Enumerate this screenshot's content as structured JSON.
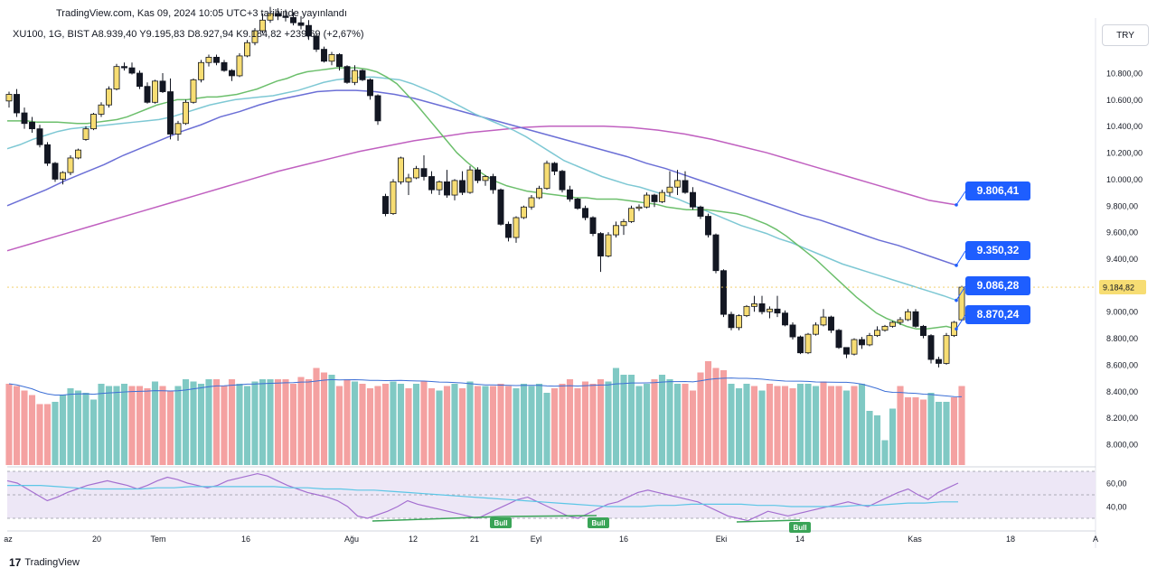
{
  "header": {
    "attribution": "TradingView.com, Kas 09, 2024 10:05 UTC+3 tarihinde yayınlandı",
    "symbol_line": "XU100, 1G, BIST  A8.939,40  Y9.195,83  D8.927,94  K9.184,82  +239,69 (+2,67%)",
    "currency": "TRY"
  },
  "footer": {
    "brand": "TradingView",
    "logo_glyph": "17"
  },
  "colors": {
    "up": "#f7dd73",
    "down": "#131722",
    "vol_up": "#80c9c4",
    "vol_down": "#f4a1a1",
    "ma_green": "#6cbf6c",
    "ma_teal": "#7ec8d4",
    "ma_blue": "#6b6fd6",
    "ma_purple": "#c060c0",
    "rsi_line": "#a46fd0",
    "rsi_ma": "#5bc6e6",
    "rsi_band": "#ede7f6",
    "label_bg": "#1e5eff",
    "div_line": "#3aa457"
  },
  "chart_data": {
    "type": "candlestick",
    "y_ticks": [
      "10.800,00",
      "10.600,00",
      "10.400,00",
      "10.200,00",
      "10.000,00",
      "9.800,00",
      "9.600,00",
      "9.400,00",
      "9.200,00",
      "9.000,00",
      "8.800,00",
      "8.600,00",
      "8.400,00",
      "8.200,00",
      "8.000,00"
    ],
    "rsi_ticks": [
      "60,00",
      "40,00"
    ],
    "x_labels": [
      "az",
      "20",
      "Tem",
      "16",
      "Ağu",
      "12",
      "21",
      "Eyl",
      "16",
      "Eki",
      "14",
      "Kas",
      "18",
      "A"
    ],
    "current_price_label": "9.184,82",
    "ma_labels": [
      "9.806,41",
      "9.350,32",
      "9.086,28",
      "8.870,24"
    ],
    "divergence_labels": [
      "Bull",
      "Bull",
      "Bull"
    ],
    "candles": [
      [
        10590,
        10660,
        10540,
        10640
      ],
      [
        10640,
        10680,
        10470,
        10500
      ],
      [
        10500,
        10540,
        10380,
        10420
      ],
      [
        10430,
        10470,
        10350,
        10380
      ],
      [
        10380,
        10410,
        10240,
        10260
      ],
      [
        10260,
        10280,
        10100,
        10120
      ],
      [
        10120,
        10130,
        9980,
        10000
      ],
      [
        10000,
        10060,
        9960,
        10050
      ],
      [
        10050,
        10180,
        10030,
        10160
      ],
      [
        10160,
        10230,
        10150,
        10220
      ],
      [
        10300,
        10400,
        10290,
        10380
      ],
      [
        10380,
        10500,
        10370,
        10490
      ],
      [
        10490,
        10580,
        10470,
        10560
      ],
      [
        10560,
        10700,
        10540,
        10680
      ],
      [
        10680,
        10870,
        10670,
        10850
      ],
      [
        10850,
        10880,
        10820,
        10840
      ],
      [
        10840,
        10880,
        10790,
        10800
      ],
      [
        10800,
        10820,
        10680,
        10700
      ],
      [
        10700,
        10730,
        10570,
        10580
      ],
      [
        10580,
        10750,
        10570,
        10740
      ],
      [
        10740,
        10800,
        10650,
        10660
      ],
      [
        10660,
        10760,
        10300,
        10340
      ],
      [
        10340,
        10440,
        10290,
        10420
      ],
      [
        10420,
        10600,
        10410,
        10580
      ],
      [
        10580,
        10760,
        10570,
        10750
      ],
      [
        10750,
        10900,
        10730,
        10880
      ],
      [
        10880,
        10940,
        10850,
        10920
      ],
      [
        10920,
        10940,
        10860,
        10880
      ],
      [
        10880,
        10900,
        10810,
        10820
      ],
      [
        10820,
        10830,
        10740,
        10780
      ],
      [
        10780,
        10950,
        10770,
        10930
      ],
      [
        10930,
        11050,
        10920,
        11030
      ],
      [
        11030,
        11140,
        11010,
        11120
      ],
      [
        11120,
        11250,
        11100,
        11200
      ],
      [
        11200,
        11300,
        11180,
        11250
      ],
      [
        11250,
        11290,
        11200,
        11230
      ],
      [
        11230,
        11280,
        11190,
        11220
      ],
      [
        11220,
        11260,
        11160,
        11180
      ],
      [
        11180,
        11230,
        11130,
        11160
      ],
      [
        11160,
        11200,
        11050,
        11080
      ],
      [
        11080,
        11100,
        10960,
        10980
      ],
      [
        10980,
        11000,
        10880,
        10890
      ],
      [
        10890,
        10960,
        10860,
        10940
      ],
      [
        10940,
        10950,
        10820,
        10850
      ],
      [
        10850,
        10860,
        10720,
        10730
      ],
      [
        10730,
        10860,
        10710,
        10820
      ],
      [
        10820,
        10830,
        10740,
        10750
      ],
      [
        10750,
        10760,
        10600,
        10630
      ],
      [
        10630,
        10640,
        10410,
        10440
      ],
      [
        9870,
        9890,
        9720,
        9740
      ],
      [
        9740,
        10000,
        9730,
        9980
      ],
      [
        9980,
        10170,
        9960,
        10160
      ],
      [
        9980,
        10040,
        9880,
        10010
      ],
      [
        10010,
        10100,
        10000,
        10080
      ],
      [
        10080,
        10180,
        9990,
        10020
      ],
      [
        10020,
        10060,
        9890,
        9920
      ],
      [
        9920,
        9990,
        9880,
        9980
      ],
      [
        9980,
        10070,
        9860,
        9880
      ],
      [
        9880,
        10000,
        9840,
        9990
      ],
      [
        9990,
        10060,
        9880,
        9900
      ],
      [
        9900,
        10100,
        9890,
        10070
      ],
      [
        10070,
        10090,
        9970,
        9990
      ],
      [
        9990,
        10030,
        9950,
        10020
      ],
      [
        10020,
        10040,
        9890,
        9920
      ],
      [
        9920,
        9930,
        9650,
        9660
      ],
      [
        9660,
        9680,
        9530,
        9560
      ],
      [
        9560,
        9720,
        9520,
        9710
      ],
      [
        9710,
        9800,
        9700,
        9790
      ],
      [
        9790,
        9880,
        9770,
        9860
      ],
      [
        9860,
        9950,
        9850,
        9930
      ],
      [
        9930,
        10140,
        9920,
        10120
      ],
      [
        10120,
        10130,
        10030,
        10060
      ],
      [
        10060,
        10070,
        9900,
        9920
      ],
      [
        9920,
        9950,
        9830,
        9850
      ],
      [
        9850,
        9860,
        9770,
        9780
      ],
      [
        9780,
        9800,
        9690,
        9710
      ],
      [
        9710,
        9720,
        9570,
        9590
      ],
      [
        9590,
        9600,
        9300,
        9420
      ],
      [
        9420,
        9600,
        9410,
        9580
      ],
      [
        9580,
        9680,
        9560,
        9650
      ],
      [
        9650,
        9700,
        9580,
        9680
      ],
      [
        9680,
        9800,
        9670,
        9780
      ],
      [
        9780,
        9810,
        9760,
        9790
      ],
      [
        9790,
        9900,
        9780,
        9880
      ],
      [
        9880,
        9890,
        9790,
        9830
      ],
      [
        9830,
        9920,
        9820,
        9900
      ],
      [
        9900,
        10060,
        9870,
        9940
      ],
      [
        9940,
        10070,
        9880,
        9990
      ],
      [
        9990,
        10060,
        9890,
        9900
      ],
      [
        9900,
        9940,
        9770,
        9790
      ],
      [
        9790,
        9800,
        9700,
        9720
      ],
      [
        9720,
        9740,
        9560,
        9580
      ],
      [
        9580,
        9590,
        9290,
        9310
      ],
      [
        9310,
        9320,
        8960,
        8980
      ],
      [
        8980,
        9000,
        8860,
        8880
      ],
      [
        8880,
        8980,
        8860,
        8970
      ],
      [
        8970,
        9050,
        8960,
        9040
      ],
      [
        9040,
        9120,
        9000,
        9060
      ],
      [
        9060,
        9120,
        8980,
        9000
      ],
      [
        9000,
        9040,
        8950,
        9020
      ],
      [
        9020,
        9120,
        8960,
        8990
      ],
      [
        8990,
        9010,
        8890,
        8900
      ],
      [
        8900,
        8920,
        8790,
        8810
      ],
      [
        8810,
        8820,
        8680,
        8690
      ],
      [
        8690,
        8840,
        8680,
        8830
      ],
      [
        8830,
        8920,
        8820,
        8900
      ],
      [
        8900,
        9020,
        8890,
        8960
      ],
      [
        8960,
        8970,
        8840,
        8860
      ],
      [
        8860,
        8870,
        8720,
        8730
      ],
      [
        8730,
        8730,
        8650,
        8680
      ],
      [
        8680,
        8800,
        8670,
        8790
      ],
      [
        8790,
        8810,
        8720,
        8750
      ],
      [
        8750,
        8840,
        8740,
        8820
      ],
      [
        8820,
        8890,
        8810,
        8860
      ],
      [
        8860,
        8900,
        8850,
        8890
      ],
      [
        8890,
        8930,
        8880,
        8920
      ],
      [
        8920,
        8960,
        8900,
        8940
      ],
      [
        8940,
        9020,
        8930,
        9000
      ],
      [
        9000,
        9020,
        8880,
        8890
      ],
      [
        8890,
        8900,
        8800,
        8820
      ],
      [
        8820,
        8830,
        8610,
        8640
      ],
      [
        8640,
        8660,
        8580,
        8610
      ],
      [
        8610,
        8840,
        8600,
        8820
      ],
      [
        8820,
        8930,
        8810,
        8920
      ],
      [
        8939,
        9196,
        8928,
        9185
      ]
    ],
    "volumes": [
      72,
      70,
      66,
      62,
      54,
      54,
      56,
      62,
      68,
      66,
      64,
      58,
      72,
      70,
      70,
      72,
      70,
      70,
      68,
      74,
      70,
      66,
      70,
      76,
      74,
      72,
      76,
      76,
      70,
      76,
      72,
      70,
      74,
      76,
      76,
      76,
      76,
      72,
      78,
      76,
      86,
      82,
      80,
      70,
      76,
      74,
      72,
      68,
      70,
      72,
      74,
      72,
      68,
      72,
      74,
      68,
      66,
      70,
      72,
      68,
      74,
      70,
      70,
      70,
      72,
      70,
      68,
      72,
      70,
      72,
      64,
      68,
      72,
      76,
      68,
      74,
      72,
      76,
      74,
      86,
      80,
      80,
      70,
      72,
      76,
      80,
      76,
      72,
      72,
      66,
      82,
      92,
      86,
      84,
      72,
      68,
      72,
      70,
      66,
      72,
      70,
      70,
      68,
      72,
      72,
      70,
      74,
      70,
      70,
      66,
      70,
      72,
      48,
      44,
      22,
      50,
      70,
      60,
      60,
      58,
      64,
      56,
      56,
      60,
      70
    ],
    "vol_up_flags": [
      0,
      0,
      0,
      0,
      0,
      0,
      1,
      1,
      1,
      1,
      1,
      1,
      1,
      1,
      1,
      1,
      0,
      0,
      0,
      1,
      0,
      0,
      1,
      1,
      1,
      1,
      1,
      0,
      0,
      0,
      1,
      1,
      1,
      1,
      1,
      0,
      0,
      0,
      0,
      0,
      0,
      0,
      1,
      0,
      0,
      1,
      0,
      0,
      0,
      0,
      1,
      1,
      0,
      1,
      0,
      0,
      1,
      0,
      1,
      0,
      1,
      0,
      1,
      0,
      0,
      0,
      1,
      1,
      1,
      1,
      1,
      0,
      0,
      0,
      0,
      0,
      0,
      0,
      1,
      1,
      1,
      1,
      1,
      1,
      0,
      1,
      1,
      1,
      0,
      0,
      0,
      0,
      0,
      0,
      1,
      1,
      1,
      0,
      1,
      0,
      0,
      0,
      0,
      1,
      1,
      1,
      0,
      0,
      0,
      1,
      0,
      1,
      1,
      1,
      1,
      1,
      0,
      0,
      0,
      0,
      1,
      1,
      1
    ],
    "ma_series": {
      "ma_green": [
        10440,
        10440,
        10440,
        10430,
        10430,
        10430,
        10425,
        10420,
        10420,
        10430,
        10440,
        10450,
        10470,
        10500,
        10530,
        10560,
        10580,
        10600,
        10600,
        10610,
        10620,
        10620,
        10630,
        10640,
        10660,
        10680,
        10710,
        10740,
        10760,
        10790,
        10810,
        10820,
        10830,
        10840,
        10840,
        10840,
        10830,
        10810,
        10770,
        10720,
        10640,
        10560,
        10470,
        10380,
        10290,
        10200,
        10130,
        10070,
        10020,
        9980,
        9950,
        9930,
        9910,
        9900,
        9890,
        9880,
        9870,
        9860,
        9860,
        9850,
        9850,
        9850,
        9840,
        9830,
        9820,
        9810,
        9790,
        9780,
        9770,
        9770,
        9770,
        9760,
        9750,
        9740,
        9720,
        9690,
        9660,
        9620,
        9570,
        9510,
        9450,
        9390,
        9320,
        9250,
        9180,
        9110,
        9050,
        8990,
        8950,
        8920,
        8890,
        8870,
        8870,
        8880,
        8890,
        8870
      ],
      "ma_teal": [
        10230,
        10260,
        10300,
        10330,
        10360,
        10380,
        10390,
        10400,
        10410,
        10420,
        10430,
        10440,
        10450,
        10470,
        10500,
        10530,
        10560,
        10580,
        10600,
        10610,
        10620,
        10630,
        10650,
        10670,
        10700,
        10730,
        10750,
        10760,
        10770,
        10770,
        10760,
        10750,
        10720,
        10680,
        10640,
        10590,
        10540,
        10490,
        10450,
        10410,
        10370,
        10320,
        10260,
        10200,
        10140,
        10100,
        10060,
        10020,
        9990,
        9960,
        9940,
        9910,
        9880,
        9850,
        9810,
        9770,
        9730,
        9690,
        9650,
        9620,
        9590,
        9550,
        9520,
        9480,
        9440,
        9400,
        9360,
        9330,
        9300,
        9270,
        9240,
        9210,
        9180,
        9150,
        9120,
        9086
      ],
      "ma_blue": [
        9800,
        9860,
        9920,
        9990,
        10050,
        10110,
        10180,
        10240,
        10300,
        10360,
        10410,
        10470,
        10510,
        10560,
        10600,
        10630,
        10660,
        10670,
        10670,
        10660,
        10640,
        10610,
        10570,
        10530,
        10490,
        10450,
        10410,
        10370,
        10330,
        10290,
        10250,
        10210,
        10170,
        10120,
        10080,
        10030,
        9980,
        9930,
        9880,
        9830,
        9780,
        9730,
        9690,
        9640,
        9590,
        9540,
        9500,
        9450,
        9400,
        9350
      ],
      "ma_purple": [
        9460,
        9520,
        9580,
        9640,
        9700,
        9760,
        9820,
        9880,
        9940,
        10000,
        10060,
        10110,
        10160,
        10210,
        10250,
        10290,
        10320,
        10350,
        10370,
        10390,
        10400,
        10400,
        10400,
        10390,
        10370,
        10340,
        10300,
        10250,
        10200,
        10140,
        10080,
        10020,
        9960,
        9900,
        9840,
        9806
      ]
    },
    "rsi": [
      62,
      60,
      55,
      50,
      45,
      48,
      52,
      55,
      58,
      60,
      62,
      60,
      58,
      55,
      58,
      62,
      65,
      63,
      60,
      58,
      56,
      58,
      62,
      64,
      66,
      68,
      66,
      62,
      58,
      55,
      52,
      50,
      48,
      45,
      40,
      32,
      30,
      33,
      36,
      40,
      45,
      42,
      40,
      38,
      36,
      34,
      32,
      30,
      34,
      38,
      42,
      46,
      48,
      44,
      40,
      36,
      32,
      30,
      34,
      38,
      42,
      44,
      48,
      52,
      54,
      52,
      50,
      48,
      46,
      44,
      40,
      36,
      32,
      30,
      28,
      32,
      36,
      34,
      32,
      34,
      36,
      38,
      40,
      42,
      44,
      42,
      40,
      44,
      48,
      52,
      55,
      50,
      46,
      52,
      56,
      60
    ],
    "rsi_ma": [
      58,
      58,
      58,
      57,
      56,
      55,
      55,
      55,
      55,
      56,
      56,
      57,
      57,
      57,
      57,
      57,
      57,
      56,
      56,
      55,
      55,
      54,
      54,
      53,
      52,
      51,
      50,
      49,
      48,
      47,
      46,
      45,
      44,
      43,
      42,
      41,
      40,
      40,
      40,
      41,
      41,
      42,
      42,
      42,
      42,
      41,
      41,
      40,
      40,
      40,
      40,
      41,
      41,
      42,
      43,
      43,
      44,
      44
    ]
  }
}
